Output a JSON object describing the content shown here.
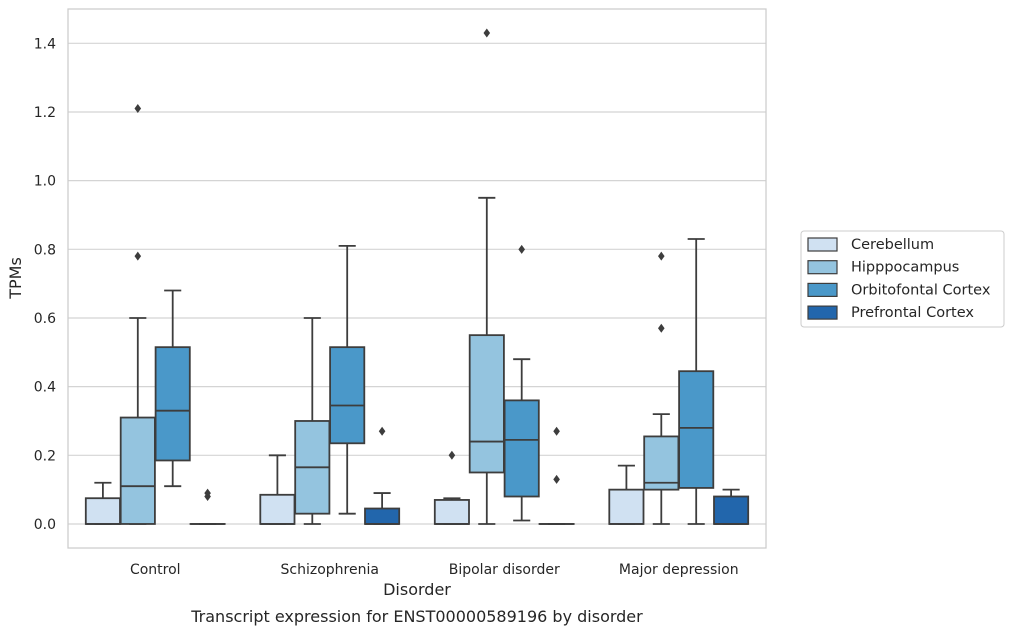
{
  "chart_data": {
    "type": "box",
    "title": "",
    "caption": "Transcript expression for ENST00000589196 by disorder",
    "xlabel": "Disorder",
    "ylabel": "TPMs",
    "ylim": [
      -0.07,
      1.5
    ],
    "yticks": [
      "0.0",
      "0.2",
      "0.4",
      "0.6",
      "0.8",
      "1.0",
      "1.2",
      "1.4"
    ],
    "grid": "horizontal",
    "legend_position": "right",
    "categories": [
      "Control",
      "Schizophrenia",
      "Bipolar disorder",
      "Major depression"
    ],
    "series": [
      {
        "name": "Cerebellum",
        "color": "#d0e1f2",
        "boxes": [
          {
            "q1": 0.0,
            "median": 0.0,
            "q3": 0.075,
            "whislo": 0.0,
            "whishi": 0.12,
            "fliers": []
          },
          {
            "q1": 0.0,
            "median": 0.0,
            "q3": 0.085,
            "whislo": 0.0,
            "whishi": 0.2,
            "fliers": []
          },
          {
            "q1": 0.0,
            "median": 0.0,
            "q3": 0.07,
            "whislo": 0.0,
            "whishi": 0.075,
            "fliers": [
              0.2
            ]
          },
          {
            "q1": 0.0,
            "median": 0.0,
            "q3": 0.1,
            "whislo": 0.0,
            "whishi": 0.17,
            "fliers": []
          }
        ]
      },
      {
        "name": "Hipppocampus",
        "color": "#94c4df",
        "boxes": [
          {
            "q1": 0.0,
            "median": 0.11,
            "q3": 0.31,
            "whislo": 0.0,
            "whishi": 0.6,
            "fliers": [
              0.78,
              1.21
            ]
          },
          {
            "q1": 0.03,
            "median": 0.165,
            "q3": 0.3,
            "whislo": 0.0,
            "whishi": 0.6,
            "fliers": []
          },
          {
            "q1": 0.15,
            "median": 0.24,
            "q3": 0.55,
            "whislo": 0.0,
            "whishi": 0.95,
            "fliers": [
              1.43
            ]
          },
          {
            "q1": 0.1,
            "median": 0.12,
            "q3": 0.255,
            "whislo": 0.0,
            "whishi": 0.32,
            "fliers": [
              0.57,
              0.78
            ]
          }
        ]
      },
      {
        "name": "Orbitofontal Cortex",
        "color": "#4a98c9",
        "boxes": [
          {
            "q1": 0.185,
            "median": 0.33,
            "q3": 0.515,
            "whislo": 0.11,
            "whishi": 0.68,
            "fliers": []
          },
          {
            "q1": 0.235,
            "median": 0.345,
            "q3": 0.515,
            "whislo": 0.03,
            "whishi": 0.81,
            "fliers": []
          },
          {
            "q1": 0.08,
            "median": 0.245,
            "q3": 0.36,
            "whislo": 0.01,
            "whishi": 0.48,
            "fliers": [
              0.8
            ]
          },
          {
            "q1": 0.105,
            "median": 0.28,
            "q3": 0.445,
            "whislo": 0.0,
            "whishi": 0.83,
            "fliers": []
          }
        ]
      },
      {
        "name": "Prefrontal Cortex",
        "color": "#2266ac",
        "boxes": [
          {
            "q1": 0.0,
            "median": 0.0,
            "q3": 0.0,
            "whislo": 0.0,
            "whishi": 0.0,
            "fliers": [
              0.08,
              0.09
            ]
          },
          {
            "q1": 0.0,
            "median": 0.0,
            "q3": 0.045,
            "whislo": 0.0,
            "whishi": 0.09,
            "fliers": [
              0.27
            ]
          },
          {
            "q1": 0.0,
            "median": 0.0,
            "q3": 0.0,
            "whislo": 0.0,
            "whishi": 0.0,
            "fliers": [
              0.13,
              0.27
            ]
          },
          {
            "q1": 0.0,
            "median": 0.0,
            "q3": 0.08,
            "whislo": 0.0,
            "whishi": 0.1,
            "fliers": []
          }
        ]
      }
    ]
  }
}
